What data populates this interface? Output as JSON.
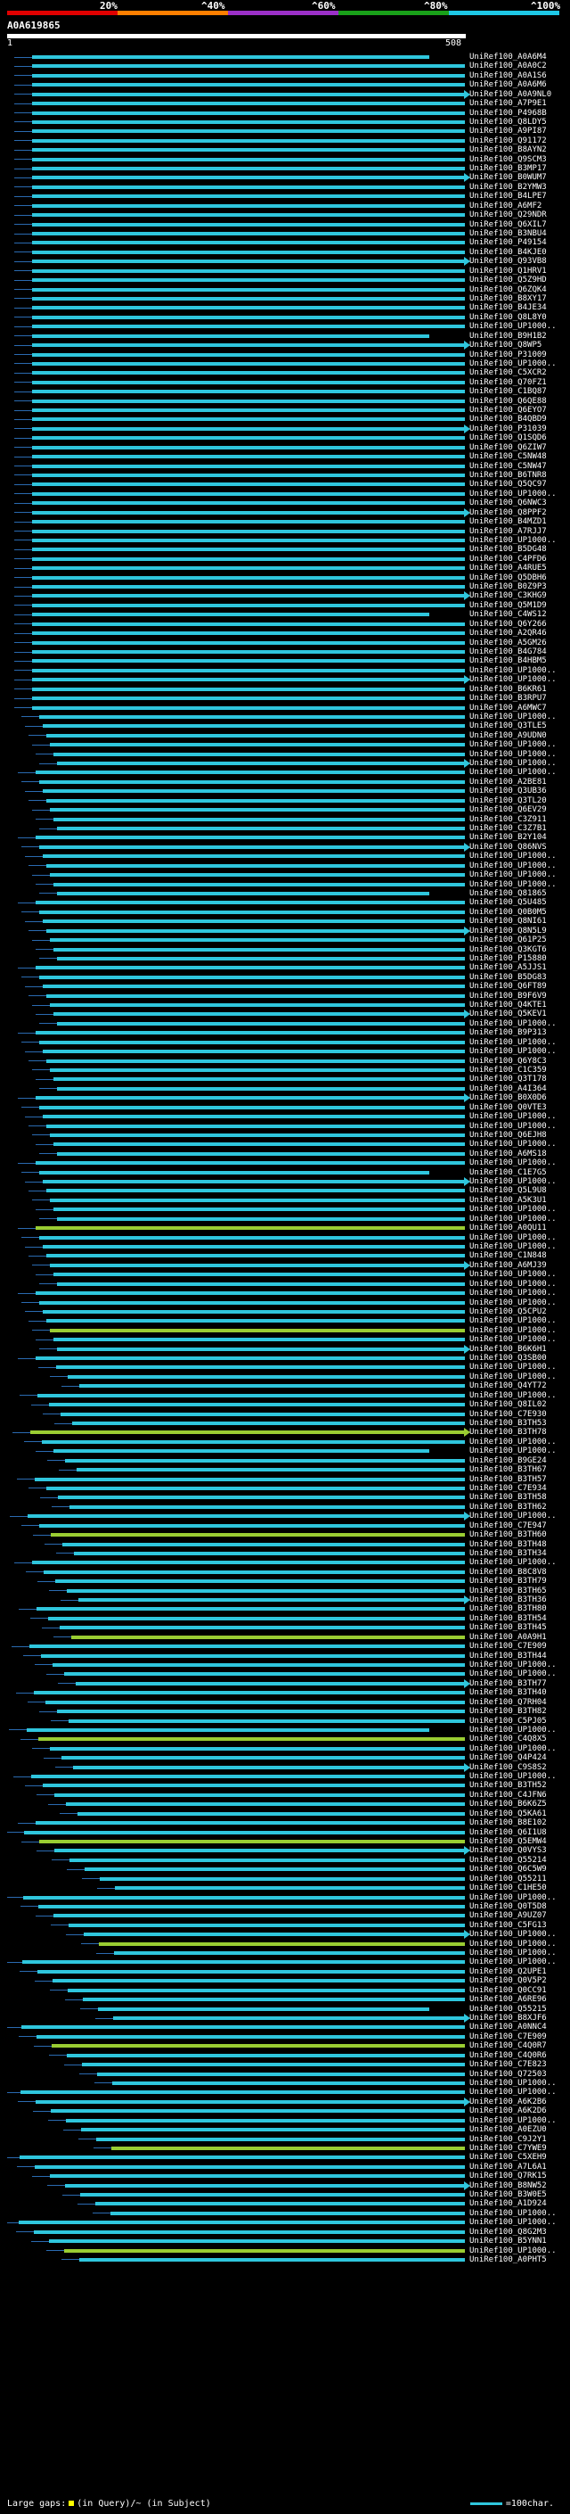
{
  "legend": {
    "labels": [
      "20%",
      "^40%",
      "^60%",
      "^80%",
      "^100%"
    ]
  },
  "query": {
    "id": "A0A619865",
    "start": "1",
    "end": "508"
  },
  "footer": {
    "gaps": "Large gaps:",
    "in_query": "(in Query)/~ (in Subject)",
    "scale": "=100char."
  },
  "hits": [
    "UniRef100_A0A6M4",
    "UniRef100_A0A0C2",
    "UniRef100_A0A1S6",
    "UniRef100_A0A6M6",
    "UniRef100_A0A9NL0",
    "UniRef100_A7P9E1",
    "UniRef100_P4968B",
    "UniRef100_Q8LDY5",
    "UniRef100_A9PI87",
    "UniRef100_Q91172",
    "UniRef100_B8AYN2",
    "UniRef100_Q9SCM3",
    "UniRef100_B3MP17",
    "UniRef100_B0WUM7",
    "UniRef100_B2YMW3",
    "UniRef100_B4LPE7",
    "UniRef100_A6MF2",
    "UniRef100_Q29NDR",
    "UniRef100_Q6XIL7",
    "UniRef100_B3NBU4",
    "UniRef100_P49154",
    "UniRef100_B4KJE0",
    "UniRef100_Q93VB8",
    "UniRef100_Q1HRV1",
    "UniRef100_Q5Z9HD",
    "UniRef100_Q6ZQK4",
    "UniRef100_B8XY17",
    "UniRef100_B4JE34",
    "UniRef100_Q8L8Y0",
    "UniRef100_UP1000..",
    "UniRef100_B9H1B2",
    "UniRef100_Q8WP5",
    "UniRef100_P31009",
    "UniRef100_UP1000..",
    "UniRef100_C5XCR2",
    "UniRef100_Q70FZ1",
    "UniRef100_C1BQ87",
    "UniRef100_Q6QE88",
    "UniRef100_Q6EYO7",
    "UniRef100_B4QBD9",
    "UniRef100_P31039",
    "UniRef100_Q1SQD6",
    "UniRef100_Q6ZIW7",
    "UniRef100_C5NW48",
    "UniRef100_C5NW47",
    "UniRef100_B6TNR8",
    "UniRef100_Q5QC97",
    "UniRef100_UP1000..",
    "UniRef100_Q6NWC3",
    "UniRef100_Q8PPF2",
    "UniRef100_B4MZD1",
    "UniRef100_A7RJJ7",
    "UniRef100_UP1000..",
    "UniRef100_B5DG48",
    "UniRef100_C4PFD6",
    "UniRef100_A4RUE5",
    "UniRef100_Q5DBH6",
    "UniRef100_B0Z9P3",
    "UniRef100_C3KHG9",
    "UniRef100_Q5M1D9",
    "UniRef100_C4WS12",
    "UniRef100_Q6Y266",
    "UniRef100_A2QR46",
    "UniRef100_A5GM26",
    "UniRef100_B4G784",
    "UniRef100_B4HBM5",
    "UniRef100_UP1000..",
    "UniRef100_UP1000..",
    "UniRef100_B6KR61",
    "UniRef100_B3RPU7",
    "UniRef100_A6MWC7",
    "UniRef100_UP1000..",
    "UniRef100_Q3TLE5",
    "UniRef100_A9UDN0",
    "UniRef100_UP1000..",
    "UniRef100_UP1000..",
    "UniRef100_UP1000..",
    "UniRef100_UP1000..",
    "UniRef100_A2BE81",
    "UniRef100_Q3UB36",
    "UniRef100_Q3TL20",
    "UniRef100_Q6EV29",
    "UniRef100_C3Z911",
    "UniRef100_C3Z7B1",
    "UniRef100_B2Y104",
    "UniRef100_Q86NVS",
    "UniRef100_UP1000..",
    "UniRef100_UP1000..",
    "UniRef100_UP1000..",
    "UniRef100_UP1000..",
    "UniRef100_Q81865",
    "UniRef100_Q5U485",
    "UniRef100_Q0B0M5",
    "UniRef100_Q8NI61",
    "UniRef100_Q8N5L9",
    "UniRef100_Q61P25",
    "UniRef100_Q3KGT6",
    "UniRef100_P15880",
    "UniRef100_A5JJS1",
    "UniRef100_B5DG83",
    "UniRef100_Q6FT89",
    "UniRef100_B9F6V9",
    "UniRef100_Q4KTE1",
    "UniRef100_Q5KEV1",
    "UniRef100_UP1000..",
    "UniRef100_B9P313",
    "UniRef100_UP1000..",
    "UniRef100_UP1000..",
    "UniRef100_Q6Y8C3",
    "UniRef100_C1C359",
    "UniRef100_Q3T178",
    "UniRef100_A4I364",
    "UniRef100_B0X0D6",
    "UniRef100_Q0VTE3",
    "UniRef100_UP1000..",
    "UniRef100_UP1000..",
    "UniRef100_Q6EJH8",
    "UniRef100_UP1000..",
    "UniRef100_A6MS18",
    "UniRef100_UP1000..",
    "UniRef100_C1E7G5",
    "UniRef100_UP1000..",
    "UniRef100_Q5L9U8",
    "UniRef100_A5K3U1",
    "UniRef100_UP1000..",
    "UniRef100_UP1000..",
    "UniRef100_A0QU11",
    "UniRef100_UP1000..",
    "UniRef100_UP1000..",
    "UniRef100_C1N848",
    "UniRef100_A6MJ39",
    "UniRef100_UP1000..",
    "UniRef100_UP1000..",
    "UniRef100_UP1000..",
    "UniRef100_UP1000..",
    "UniRef100_Q5CPU2",
    "UniRef100_UP1000..",
    "UniRef100_UP1000..",
    "UniRef100_UP1000..",
    "UniRef100_B6K6H1",
    "UniRef100_Q3SB00",
    "UniRef100_UP1000..",
    "UniRef100_UP1000..",
    "UniRef100_Q4YT72",
    "UniRef100_UP1000..",
    "UniRef100_Q8IL02",
    "UniRef100_C7E930",
    "UniRef100_B3TH53",
    "UniRef100_B3TH78",
    "UniRef100_UP1000..",
    "UniRef100_UP1000..",
    "UniRef100_B9GE24",
    "UniRef100_B3TH67",
    "UniRef100_B3TH57",
    "UniRef100_C7E934",
    "UniRef100_B3TH58",
    "UniRef100_B3TH62",
    "UniRef100_UP1000..",
    "UniRef100_C7E947",
    "UniRef100_B3TH60",
    "UniRef100_B3TH48",
    "UniRef100_B3TH34",
    "UniRef100_UP1000..",
    "UniRef100_B8C8V8",
    "UniRef100_B3TH79",
    "UniRef100_B3TH65",
    "UniRef100_B3TH36",
    "UniRef100_B3TH80",
    "UniRef100_B3TH54",
    "UniRef100_B3TH45",
    "UniRef100_A0A9H1",
    "UniRef100_C7E909",
    "UniRef100_B3TH44",
    "UniRef100_UP1000..",
    "UniRef100_UP1000..",
    "UniRef100_B3TH77",
    "UniRef100_B3TH40",
    "UniRef100_Q7RH04",
    "UniRef100_B3TH82",
    "UniRef100_C5PJ05",
    "UniRef100_UP1000..",
    "UniRef100_C4Q8X5",
    "UniRef100_UP1000..",
    "UniRef100_Q4P424",
    "UniRef100_C9S8S2",
    "UniRef100_UP1000..",
    "UniRef100_B3TH52",
    "UniRef100_C4JFN6",
    "UniRef100_B6K6Z5",
    "UniRef100_Q5KA61",
    "UniRef100_B8E102",
    "UniRef100_Q6I1U8",
    "UniRef100_Q5EMW4",
    "UniRef100_Q0VYS3",
    "UniRef100_Q55214",
    "UniRef100_Q6C5W9",
    "UniRef100_Q55211",
    "UniRef100_C1HE50",
    "UniRef100_UP1000..",
    "UniRef100_Q0T5D8",
    "UniRef100_A9UZ07",
    "UniRef100_C5FG13",
    "UniRef100_UP1000..",
    "UniRef100_UP1000..",
    "UniRef100_UP1000..",
    "UniRef100_UP1000..",
    "UniRef100_Q2UPE1",
    "UniRef100_Q0V5P2",
    "UniRef100_Q0CC91",
    "UniRef100_A6RE96",
    "UniRef100_Q55215",
    "UniRef100_B8XJF6",
    "UniRef100_A0NNC4",
    "UniRef100_C7E909",
    "UniRef100_C4Q0R7",
    "UniRef100_C4Q0R6",
    "UniRef100_C7E823",
    "UniRef100_Q72503",
    "UniRef100_UP1000..",
    "UniRef100_UP1000..",
    "UniRef100_A6K2B6",
    "UniRef100_A6K2D6",
    "UniRef100_UP1000..",
    "UniRef100_A0EZU0",
    "UniRef100_C9J2Y1",
    "UniRef100_C7YWE9",
    "UniRef100_C5XEH9",
    "UniRef100_A7L6A1",
    "UniRef100_Q7RK15",
    "UniRef100_B8NW52",
    "UniRef100_B3W0E5",
    "UniRef100_A1D924",
    "UniRef100_UP1000..",
    "UniRef100_UP1000..",
    "UniRef100_Q8G2M3",
    "UniRef100_B5YNN1",
    "UniRef100_UP1000..",
    "UniRef100_A0PHT5"
  ]
}
